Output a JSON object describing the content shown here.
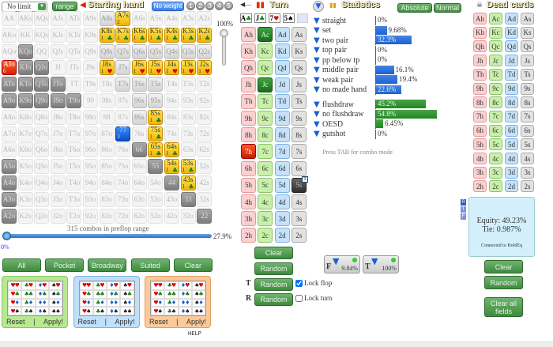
{
  "header": {
    "game_select": "No limit",
    "range_button": "range",
    "starting_hand_title": "Starting hand",
    "no_weight_button": "No weight",
    "weight_slots": [
      "1",
      "2",
      "3",
      "4",
      "5"
    ]
  },
  "grid": {
    "rows": [
      [
        [
          "AA",
          "f"
        ],
        [
          "AKs",
          "f"
        ],
        [
          "AQs",
          "f"
        ],
        [
          "AJs",
          "f"
        ],
        [
          "ATs",
          "f"
        ],
        [
          "A9s",
          "f"
        ],
        [
          "A8s",
          "r"
        ],
        [
          "A7s",
          "y",
          "2",
          ""
        ],
        [
          "A6s",
          "f"
        ],
        [
          "A5s",
          "f"
        ],
        [
          "A4s",
          "f"
        ],
        [
          "A3s",
          "f"
        ],
        [
          "A2s",
          "f"
        ]
      ],
      [
        [
          "AKo",
          "f"
        ],
        [
          "KK",
          "f"
        ],
        [
          "KQs",
          "f"
        ],
        [
          "KJs",
          "f"
        ],
        [
          "KTs",
          "f"
        ],
        [
          "K9s",
          "f"
        ],
        [
          "K8s",
          "y",
          "1",
          "club"
        ],
        [
          "K7s",
          "y",
          "1",
          "club"
        ],
        [
          "K6s",
          "y",
          "1",
          "club"
        ],
        [
          "K5s",
          "y",
          "1",
          "club"
        ],
        [
          "K4s",
          "y",
          "1",
          "club"
        ],
        [
          "K3s",
          "y",
          "1",
          "club"
        ],
        [
          "K2s",
          "y",
          "1",
          "club"
        ]
      ],
      [
        [
          "AQo",
          "f"
        ],
        [
          "KQo",
          "s"
        ],
        [
          "QQ",
          "f"
        ],
        [
          "QJs",
          "f"
        ],
        [
          "QTs",
          "f"
        ],
        [
          "Q9s",
          "f"
        ],
        [
          "Q8s",
          "r"
        ],
        [
          "Q7s",
          "r"
        ],
        [
          "Q6s",
          "r"
        ],
        [
          "Q5s",
          "r"
        ],
        [
          "Q4s",
          "r"
        ],
        [
          "Q3s",
          "r"
        ],
        [
          "Q2s",
          "r"
        ]
      ],
      [
        [
          "AJo",
          "red",
          "6",
          ""
        ],
        [
          "KJo",
          "s"
        ],
        [
          "QJo",
          "s"
        ],
        [
          "JJ",
          "f"
        ],
        [
          "JTs",
          "f"
        ],
        [
          "J9s",
          "f"
        ],
        [
          "J8s",
          "y",
          "1",
          "heart"
        ],
        [
          "J7s",
          "r"
        ],
        [
          "J6s",
          "y",
          "1",
          "heart"
        ],
        [
          "J5s",
          "y",
          "1",
          "heart"
        ],
        [
          "J4s",
          "y",
          "1",
          "heart"
        ],
        [
          "J3s",
          "y",
          "1",
          "heart"
        ],
        [
          "J2s",
          "y",
          "1",
          "heart"
        ]
      ],
      [
        [
          "ATo",
          "s"
        ],
        [
          "KTo",
          "s"
        ],
        [
          "QTo",
          "s"
        ],
        [
          "JTo",
          "s"
        ],
        [
          "TT",
          "f"
        ],
        [
          "T9s",
          "f"
        ],
        [
          "T8s",
          "f"
        ],
        [
          "T7s",
          "r"
        ],
        [
          "T6s",
          "r"
        ],
        [
          "T5s",
          "r"
        ],
        [
          "T4s",
          "f"
        ],
        [
          "T3s",
          "f"
        ],
        [
          "T2s",
          "f"
        ]
      ],
      [
        [
          "A9o",
          "s"
        ],
        [
          "K9o",
          "s"
        ],
        [
          "Q9o",
          "s"
        ],
        [
          "J9o",
          "s"
        ],
        [
          "T9o",
          "s"
        ],
        [
          "99",
          "f"
        ],
        [
          "98s",
          "f"
        ],
        [
          "97s",
          "f"
        ],
        [
          "96s",
          "r"
        ],
        [
          "95s",
          "r"
        ],
        [
          "94s",
          "f"
        ],
        [
          "93s",
          "f"
        ],
        [
          "92s",
          "f"
        ]
      ],
      [
        [
          "A8o",
          "f"
        ],
        [
          "K8o",
          "f"
        ],
        [
          "Q8o",
          "f"
        ],
        [
          "J8o",
          "f"
        ],
        [
          "T8o",
          "f"
        ],
        [
          "98o",
          "f"
        ],
        [
          "88",
          "f"
        ],
        [
          "87s",
          "f"
        ],
        [
          "86s",
          "r"
        ],
        [
          "85s",
          "y",
          "1",
          "club"
        ],
        [
          "84s",
          "f"
        ],
        [
          "83s",
          "f"
        ],
        [
          "82s",
          "f"
        ]
      ],
      [
        [
          "A7o",
          "f"
        ],
        [
          "K7o",
          "f"
        ],
        [
          "Q7o",
          "f"
        ],
        [
          "J7o",
          "f"
        ],
        [
          "T7o",
          "f"
        ],
        [
          "97o",
          "f"
        ],
        [
          "87o",
          "f"
        ],
        [
          "77",
          "blue",
          "3",
          ""
        ],
        [
          "76s",
          "f"
        ],
        [
          "75s",
          "y",
          "1",
          "club"
        ],
        [
          "74s",
          "f"
        ],
        [
          "73s",
          "f"
        ],
        [
          "72s",
          "f"
        ]
      ],
      [
        [
          "A6o",
          "f"
        ],
        [
          "K6o",
          "f"
        ],
        [
          "Q6o",
          "f"
        ],
        [
          "J6o",
          "f"
        ],
        [
          "T6o",
          "f"
        ],
        [
          "96o",
          "f"
        ],
        [
          "86o",
          "f"
        ],
        [
          "76o",
          "f"
        ],
        [
          "66",
          "s"
        ],
        [
          "65s",
          "y",
          "1",
          "club"
        ],
        [
          "64s",
          "y",
          "1",
          "club"
        ],
        [
          "63s",
          "f"
        ],
        [
          "62s",
          "f"
        ]
      ],
      [
        [
          "A5o",
          "s"
        ],
        [
          "K5o",
          "f"
        ],
        [
          "Q5o",
          "f"
        ],
        [
          "J5o",
          "f"
        ],
        [
          "T5o",
          "f"
        ],
        [
          "95o",
          "f"
        ],
        [
          "85o",
          "f"
        ],
        [
          "75o",
          "f"
        ],
        [
          "65o",
          "f"
        ],
        [
          "55",
          "s"
        ],
        [
          "54s",
          "y",
          "1",
          "club"
        ],
        [
          "53s",
          "y",
          "1",
          "club"
        ],
        [
          "52s",
          "f"
        ]
      ],
      [
        [
          "A4o",
          "s"
        ],
        [
          "K4o",
          "f"
        ],
        [
          "Q4o",
          "f"
        ],
        [
          "J4o",
          "f"
        ],
        [
          "T4o",
          "f"
        ],
        [
          "94o",
          "f"
        ],
        [
          "84o",
          "f"
        ],
        [
          "74o",
          "f"
        ],
        [
          "64o",
          "f"
        ],
        [
          "54o",
          "f"
        ],
        [
          "44",
          "s"
        ],
        [
          "43s",
          "y",
          "1",
          "club"
        ],
        [
          "42s",
          "f"
        ]
      ],
      [
        [
          "A3o",
          "s"
        ],
        [
          "K3o",
          "f"
        ],
        [
          "Q3o",
          "f"
        ],
        [
          "J3o",
          "f"
        ],
        [
          "T3o",
          "f"
        ],
        [
          "93o",
          "f"
        ],
        [
          "83o",
          "f"
        ],
        [
          "73o",
          "f"
        ],
        [
          "63o",
          "f"
        ],
        [
          "53o",
          "f"
        ],
        [
          "43o",
          "f"
        ],
        [
          "33",
          "s"
        ],
        [
          "32s",
          "f"
        ]
      ],
      [
        [
          "A2o",
          "s"
        ],
        [
          "K2o",
          "f"
        ],
        [
          "Q2o",
          "f"
        ],
        [
          "J2o",
          "f"
        ],
        [
          "T2o",
          "f"
        ],
        [
          "92o",
          "f"
        ],
        [
          "82o",
          "f"
        ],
        [
          "72o",
          "f"
        ],
        [
          "62o",
          "f"
        ],
        [
          "52o",
          "f"
        ],
        [
          "42o",
          "f"
        ],
        [
          "32o",
          "f"
        ],
        [
          "22",
          "s"
        ]
      ]
    ],
    "combos_label": "315 combos in preflop range",
    "range_slider_min": "0%",
    "range_slider_value": "27.9%",
    "range_percent": 27.9,
    "vertical_slider_value": "100%"
  },
  "presets": [
    "All",
    "Pocket",
    "Broadway",
    "Suited",
    "Clear"
  ],
  "suit_boxes": [
    {
      "color": "#b8e890",
      "border": "#8cc46a",
      "reset": "Reset",
      "sep": "|",
      "apply": "Apply!"
    },
    {
      "color": "#bfe0fb",
      "border": "#7fb2e0",
      "reset": "Reset",
      "sep": "|",
      "apply": "Apply!"
    },
    {
      "color": "#fbc99a",
      "border": "#e0a060",
      "reset": "Reset",
      "sep": "|",
      "apply": "Apply!"
    }
  ],
  "help": "HELP",
  "board": {
    "title": "Turn",
    "cards": [
      {
        "r": "A",
        "s": "♣",
        "c": "#1a7a1a"
      },
      {
        "r": "J",
        "s": "♣",
        "c": "#1a7a1a"
      },
      {
        "r": "7",
        "s": "♥",
        "c": "#d00"
      },
      {
        "r": "5",
        "s": "♠",
        "c": "#000"
      }
    ],
    "ranks": [
      "A",
      "K",
      "Q",
      "J",
      "T",
      "9",
      "8",
      "7",
      "6",
      "5",
      "4",
      "3",
      "2"
    ],
    "suits": [
      "h",
      "c",
      "d",
      "s"
    ],
    "selected": {
      "Ac": "csel",
      "Jc": "csel",
      "7h": "hsel",
      "5s": "ssel"
    },
    "badge": {
      "5s": "T"
    },
    "clear": "Clear",
    "random": "Random",
    "flop_random": "Random",
    "turn_random": "Random",
    "flop_marker": "T",
    "turn_marker": "R",
    "lock_flop": "Lock flop",
    "lock_flop_checked": true,
    "lock_turn": "Lock turn",
    "lock_turn_checked": false
  },
  "stats": {
    "title": "Statistics",
    "absolute": "Absolute",
    "normal": "Normal",
    "hint": "Press TAB for combo mode",
    "made": [
      {
        "label": "straight",
        "value": "0%",
        "pct": 0
      },
      {
        "label": "set",
        "value": "9.68%",
        "pct": 9.68
      },
      {
        "label": "two pair",
        "value": "32.3%",
        "pct": 32.3
      },
      {
        "label": "top pair",
        "value": "0%",
        "pct": 0
      },
      {
        "label": "pp below tp",
        "value": "0%",
        "pct": 0
      },
      {
        "label": "middle pair",
        "value": "16.1%",
        "pct": 16.1
      },
      {
        "label": "weak pair",
        "value": "19.4%",
        "pct": 19.4
      },
      {
        "label": "no made hand",
        "value": "22.6%",
        "pct": 22.6
      }
    ],
    "draws": [
      {
        "label": "flushdraw",
        "value": "45.2%",
        "pct": 45.2
      },
      {
        "label": "no flushdraw",
        "value": "54.8%",
        "pct": 54.8
      },
      {
        "label": "OESD",
        "value": "6.45%",
        "pct": 6.45
      },
      {
        "label": "gutshot",
        "value": "0%",
        "pct": 0
      }
    ],
    "filter_flop": {
      "letter": "F",
      "value": "9.84%"
    },
    "filter_turn": {
      "letter": "T",
      "value": "100%"
    }
  },
  "dead": {
    "title": "Dead cards",
    "equity": "Equity: 49.23%",
    "tie": "Tie: 0.987%",
    "connected": "Connected to HoldEq",
    "street_tabs": [
      "R",
      "T",
      "F"
    ],
    "clear": "Clear",
    "random": "Random",
    "clear_all": "Clear all fields"
  },
  "colors": {
    "made_bar": "#1a62d8",
    "draw_bar": "#1e8a1e",
    "accent_green": "#3f8a3f"
  }
}
